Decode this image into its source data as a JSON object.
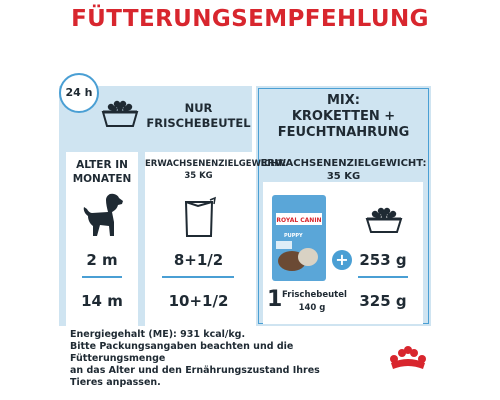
{
  "title": "FÜTTERUNGSEMPFEHLUNG",
  "clock": {
    "label": "24 h"
  },
  "left_panel": {
    "header": [
      "NUR",
      "FRISCHEBEUTEL"
    ],
    "age": {
      "label": [
        "ALTER IN",
        "MONATEN"
      ],
      "rows": [
        "2 m",
        "14 m"
      ]
    },
    "fresh": {
      "weight_label": [
        "ERWACHSENENZIELGEWICHT:",
        "35 KG"
      ],
      "rows": [
        "8+1/2",
        "10+1/2"
      ]
    }
  },
  "right_panel": {
    "header": [
      "MIX:",
      "KROKETTEN +",
      "FEUCHTNAHRUNG"
    ],
    "weight_label": [
      "ERWACHSENENZIELGEWICHT:",
      "35 KG"
    ],
    "pouch": {
      "count": "1",
      "label": "Frischebeutel",
      "weight": "140 g",
      "brand": "ROYAL CANIN",
      "product": "PUPPY"
    },
    "plus": "+",
    "rows": [
      "253 g",
      "325 g"
    ]
  },
  "footnote": [
    "Energiegehalt (ME): 931 kcal/kg.",
    "Bitte Packungsangaben beachten und die",
    "Fütterungsmenge",
    "an das Alter und den Ernährungszustand Ihres",
    "Tieres anpassen."
  ],
  "icons": [
    "clock-icon",
    "food-bowl-icon",
    "puppy-silhouette-icon",
    "pouch-icon",
    "product-pouch-image",
    "royal-canin-crown-logo"
  ],
  "colors": {
    "title_red": "#d8262e",
    "panel_blue": "#cfe4f1",
    "accent_blue": "#4a9fd4",
    "text_dark": "#1f2a33"
  }
}
